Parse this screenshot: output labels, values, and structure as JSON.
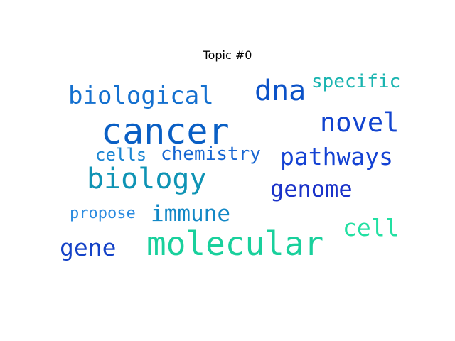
{
  "title": "Topic #0",
  "words": {
    "cancer": {
      "text": "cancer",
      "color": "#0a5fc4"
    },
    "molecular": {
      "text": "molecular",
      "color": "#19d09c"
    },
    "biology": {
      "text": "biology",
      "color": "#0e93b4"
    },
    "dna": {
      "text": "dna",
      "color": "#0b52c7"
    },
    "biological": {
      "text": "biological",
      "color": "#1470cf"
    },
    "novel": {
      "text": "novel",
      "color": "#1244cf"
    },
    "pathways": {
      "text": "pathways",
      "color": "#1442d3"
    },
    "genome": {
      "text": "genome",
      "color": "#1a32c9"
    },
    "cell": {
      "text": "cell",
      "color": "#22e0a2"
    },
    "gene": {
      "text": "gene",
      "color": "#1442c7"
    },
    "immune": {
      "text": "immune",
      "color": "#1288c6"
    },
    "chemistry": {
      "text": "chemistry",
      "color": "#1565d2"
    },
    "cells": {
      "text": "cells",
      "color": "#1a85d2"
    },
    "specific": {
      "text": "specific",
      "color": "#1ab4b0"
    },
    "propose": {
      "text": "propose",
      "color": "#2a8be0"
    }
  }
}
